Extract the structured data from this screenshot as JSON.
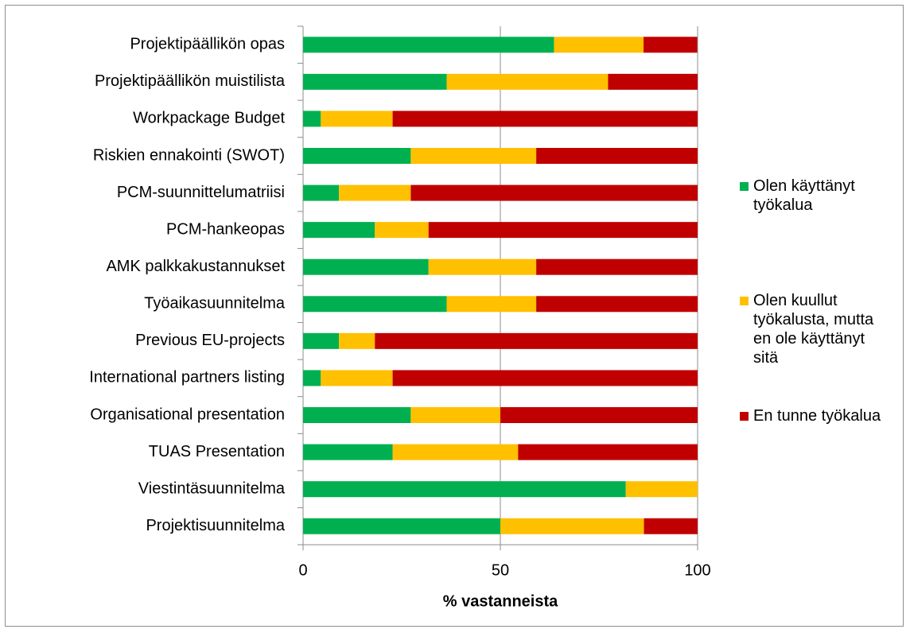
{
  "chart_data": {
    "type": "stacked-barh",
    "categories": [
      "Projektipäällikön opas",
      "Projektipäällikön muistilista",
      "Workpackage Budget",
      "Riskien ennakointi (SWOT)",
      "PCM-suunnittelumatriisi",
      "PCM-hankeopas",
      "AMK palkkakustannukset",
      "Työaikasuunnitelma",
      "Previous EU-projects",
      "International partners listing",
      "Organisational presentation",
      "TUAS Presentation",
      "Viestintäsuunnitelma",
      "Projektisuunnitelma"
    ],
    "series": [
      {
        "name": "Olen käyttänyt työkalua",
        "color": "#00b050",
        "values": [
          63.6,
          36.4,
          4.5,
          27.3,
          9.1,
          18.2,
          31.8,
          36.4,
          9.1,
          4.5,
          27.3,
          22.7,
          81.8,
          50.0
        ]
      },
      {
        "name": "Olen kuullut työkalusta, mutta en ole käyttänyt sitä",
        "color": "#ffc000",
        "values": [
          22.7,
          40.9,
          18.2,
          31.8,
          18.2,
          13.6,
          27.3,
          22.7,
          9.1,
          18.2,
          22.7,
          31.8,
          18.2,
          36.4
        ]
      },
      {
        "name": "En tunne työkalua",
        "color": "#c00000",
        "values": [
          13.6,
          22.7,
          77.3,
          40.9,
          72.7,
          68.2,
          40.9,
          40.9,
          81.8,
          77.3,
          50.0,
          45.5,
          0,
          13.6
        ]
      }
    ],
    "xlabel": "% vastanneista",
    "xlim": [
      0,
      100
    ],
    "xticks": [
      0,
      50,
      100
    ],
    "grid": true,
    "legend": "right"
  }
}
